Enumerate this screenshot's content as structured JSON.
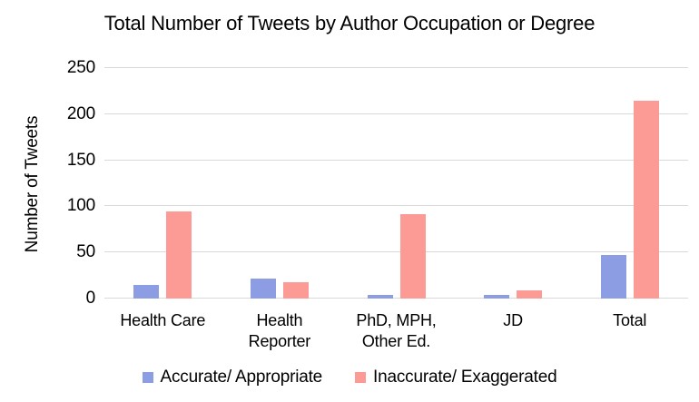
{
  "title": "Total Number of Tweets by Author Occupation or Degree",
  "chart_data": {
    "type": "bar",
    "title": "Total Number of Tweets by Author Occupation or Degree",
    "xlabel": "",
    "ylabel": "Number of Tweets",
    "categories": [
      "Health Care",
      "Health Reporter",
      "PhD, MPH, Other Ed.",
      "JD",
      "Total"
    ],
    "category_label_lines": [
      [
        "Health Care"
      ],
      [
        "Health",
        "Reporter"
      ],
      [
        "PhD, MPH,",
        "Other Ed."
      ],
      [
        "JD"
      ],
      [
        "Total"
      ]
    ],
    "series": [
      {
        "name": "Accurate/ Appropriate",
        "color": "#8C9DE3",
        "values": [
          15,
          22,
          4,
          4,
          47
        ]
      },
      {
        "name": "Inaccurate/ Exaggerated",
        "color": "#FC9B95",
        "values": [
          95,
          18,
          92,
          9,
          215
        ]
      }
    ],
    "ylim": [
      0,
      250
    ],
    "yticks": [
      0,
      50,
      100,
      150,
      200,
      250
    ],
    "grid": true,
    "legend_position": "bottom"
  },
  "colors": {
    "gridline": "#D9D9D9",
    "baseline": "#D9D9D9",
    "text": "#000000",
    "background": "#FFFFFF",
    "series_accurate": "#8C9DE3",
    "series_inaccurate": "#FC9B95"
  }
}
